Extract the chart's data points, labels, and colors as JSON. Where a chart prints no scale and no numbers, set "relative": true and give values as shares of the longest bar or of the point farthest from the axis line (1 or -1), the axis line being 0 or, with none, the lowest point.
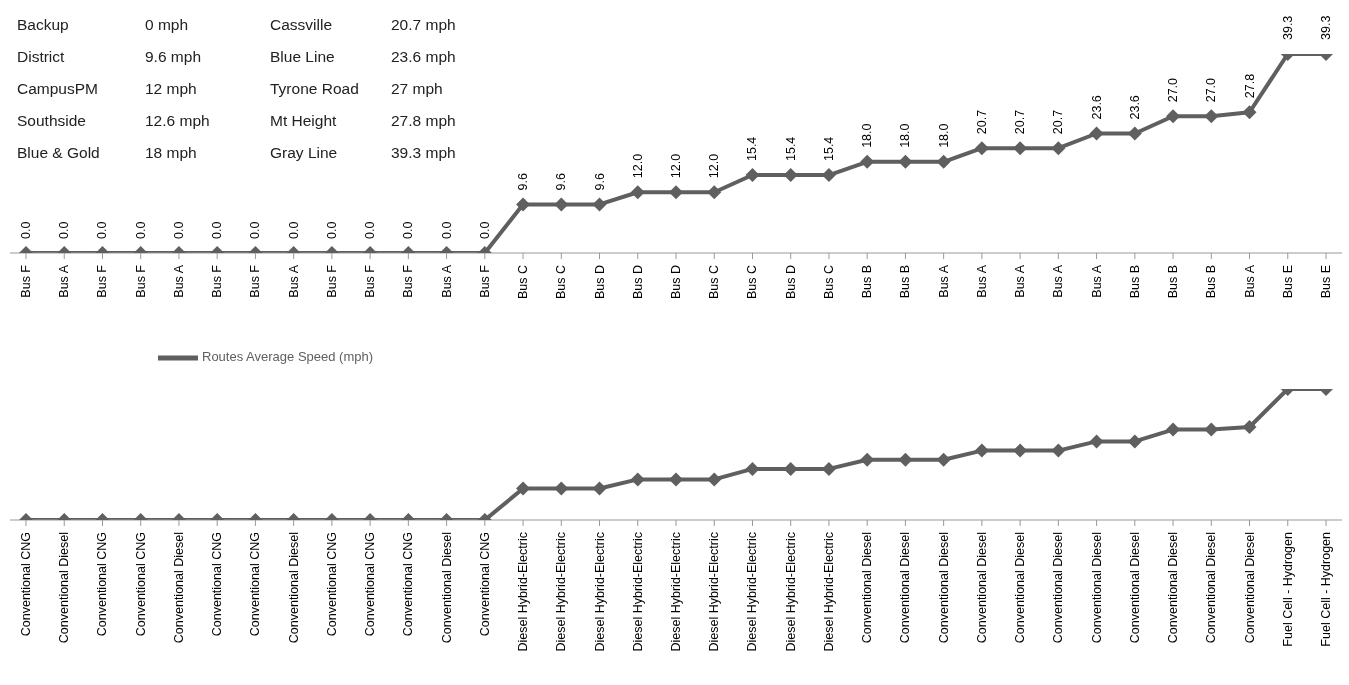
{
  "chart_data": [
    {
      "type": "line",
      "categories": [
        "Bus F",
        "Bus A",
        "Bus F",
        "Bus F",
        "Bus A",
        "Bus F",
        "Bus F",
        "Bus A",
        "Bus F",
        "Bus F",
        "Bus F",
        "Bus A",
        "Bus F",
        "Bus C",
        "Bus C",
        "Bus D",
        "Bus D",
        "Bus D",
        "Bus C",
        "Bus C",
        "Bus D",
        "Bus C",
        "Bus B",
        "Bus B",
        "Bus A",
        "Bus A",
        "Bus A",
        "Bus A",
        "Bus A",
        "Bus B",
        "Bus B",
        "Bus B",
        "Bus A",
        "Bus E",
        "Bus E"
      ],
      "series": [
        {
          "color": "#5f5f5f",
          "values": [
            0,
            0,
            0,
            0,
            0,
            0,
            0,
            0,
            0,
            0,
            0,
            0,
            0,
            9.6,
            9.6,
            9.6,
            12.0,
            12.0,
            12.0,
            15.4,
            15.4,
            15.4,
            18.0,
            18.0,
            18.0,
            20.7,
            20.7,
            20.7,
            23.6,
            23.6,
            27.0,
            27.0,
            27.8,
            39.3,
            39.3
          ],
          "value_labels": [
            "0.0",
            "0.0",
            "0.0",
            "0.0",
            "0.0",
            "0.0",
            "0.0",
            "0.0",
            "0.0",
            "0.0",
            "0.0",
            "0.0",
            "0.0",
            "9.6",
            "9.6",
            "9.6",
            "12.0",
            "12.0",
            "12.0",
            "15.4",
            "15.4",
            "15.4",
            "18.0",
            "18.0",
            "18.0",
            "20.7",
            "20.7",
            "20.7",
            "23.6",
            "23.6",
            "27.0",
            "27.0",
            "27.8",
            "39.3",
            "39.3"
          ]
        }
      ],
      "marker": "diamond",
      "line_style": "solid",
      "legend": false,
      "grid": false,
      "tick_labels": "x",
      "annotations": [
        "Backup",
        "0 mph",
        "Cassville",
        "20.7 mph",
        "District",
        "9.6 mph",
        "Blue Line",
        "23.6 mph",
        "CampusPM",
        "12 mph",
        "Tyrone Road",
        "27 mph",
        "Southside",
        "12.6 mph",
        "Mt Height",
        "27.8 mph",
        "Blue & Gold",
        "18 mph",
        "Gray Line",
        "39.3 mph"
      ]
    },
    {
      "type": "line",
      "relative": true,
      "categories": [
        "Conventional CNG",
        "Conventional Diesel",
        "Conventional CNG",
        "Conventional CNG",
        "Conventional Diesel",
        "Conventional CNG",
        "Conventional CNG",
        "Conventional Diesel",
        "Conventional CNG",
        "Conventional CNG",
        "Conventional CNG",
        "Conventional Diesel",
        "Conventional CNG",
        "Diesel Hybrid-Electric",
        "Diesel Hybrid-Electric",
        "Diesel Hybrid-Electric",
        "Diesel Hybrid-Electric",
        "Diesel Hybrid-Electric",
        "Diesel Hybrid-Electric",
        "Diesel Hybrid-Electric",
        "Diesel Hybrid-Electric",
        "Diesel Hybrid-Electric",
        "Conventional Diesel",
        "Conventional Diesel",
        "Conventional Diesel",
        "Conventional Diesel",
        "Conventional Diesel",
        "Conventional Diesel",
        "Conventional Diesel",
        "Conventional Diesel",
        "Conventional Diesel",
        "Conventional Diesel",
        "Conventional Diesel",
        "Fuel Cell - Hydrogen",
        "Fuel Cell - Hydrogen"
      ],
      "series": [
        {
          "name": "Routes Average Speed (mph)",
          "color": "#5f5f5f",
          "values": [
            0,
            0,
            0,
            0,
            0,
            0,
            0,
            0,
            0,
            0,
            0,
            0,
            0,
            0.24,
            0.24,
            0.24,
            0.31,
            0.31,
            0.31,
            0.39,
            0.39,
            0.39,
            0.46,
            0.46,
            0.46,
            0.53,
            0.53,
            0.53,
            0.6,
            0.6,
            0.69,
            0.69,
            0.71,
            1,
            1
          ]
        }
      ],
      "marker": "diamond",
      "line_style": "solid",
      "legend": "top left",
      "grid": false
    }
  ]
}
